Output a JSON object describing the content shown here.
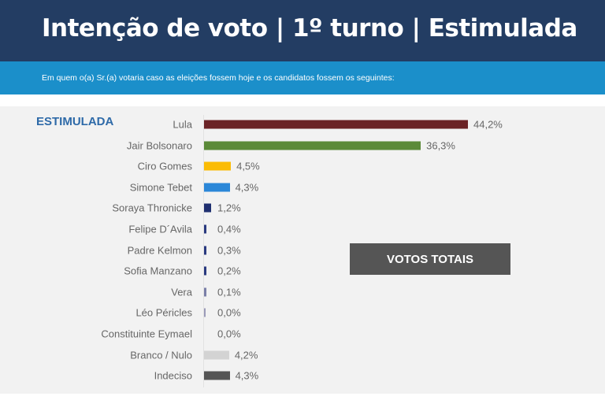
{
  "header": {
    "title": "Intenção de voto | 1º turno | Estimulada",
    "subtitle": "Em quem o(a) Sr.(a) votaria caso as eleições fossem hoje e os candidatos fossem os seguintes:"
  },
  "button": {
    "label": "VOTOS TOTAIS"
  },
  "chart_data": {
    "type": "bar",
    "orientation": "horizontal",
    "title": "ESTIMULADA",
    "grid": false,
    "xlim": [
      0,
      44.2
    ],
    "categories": [
      "Lula",
      "Jair Bolsonaro",
      "Ciro Gomes",
      "Simone Tebet",
      "Soraya Thronicke",
      "Felipe D´Avila",
      "Padre Kelmon",
      "Sofia Manzano",
      "Vera",
      "Léo Péricles",
      "Constituinte Eymael",
      "Branco / Nulo",
      "Indeciso"
    ],
    "values": [
      44.2,
      36.3,
      4.5,
      4.3,
      1.2,
      0.4,
      0.3,
      0.2,
      0.1,
      0.0,
      0.0,
      4.2,
      4.3
    ],
    "labels": [
      "44,2%",
      "36,3%",
      "4,5%",
      "4,3%",
      "1,2%",
      "0,4%",
      "0,3%",
      "0,2%",
      "0,1%",
      "0,0%",
      "0,0%",
      "4,2%",
      "4,3%"
    ],
    "colors": [
      "#6b2326",
      "#5b8a38",
      "#fbbc05",
      "#2b87d8",
      "#1f2f70",
      "#2a3a80",
      "#2a3a80",
      "#2a3a80",
      "#7a7fa8",
      "#9a9ab8",
      "#f2f2f2",
      "#d3d3d3",
      "#555555"
    ]
  }
}
